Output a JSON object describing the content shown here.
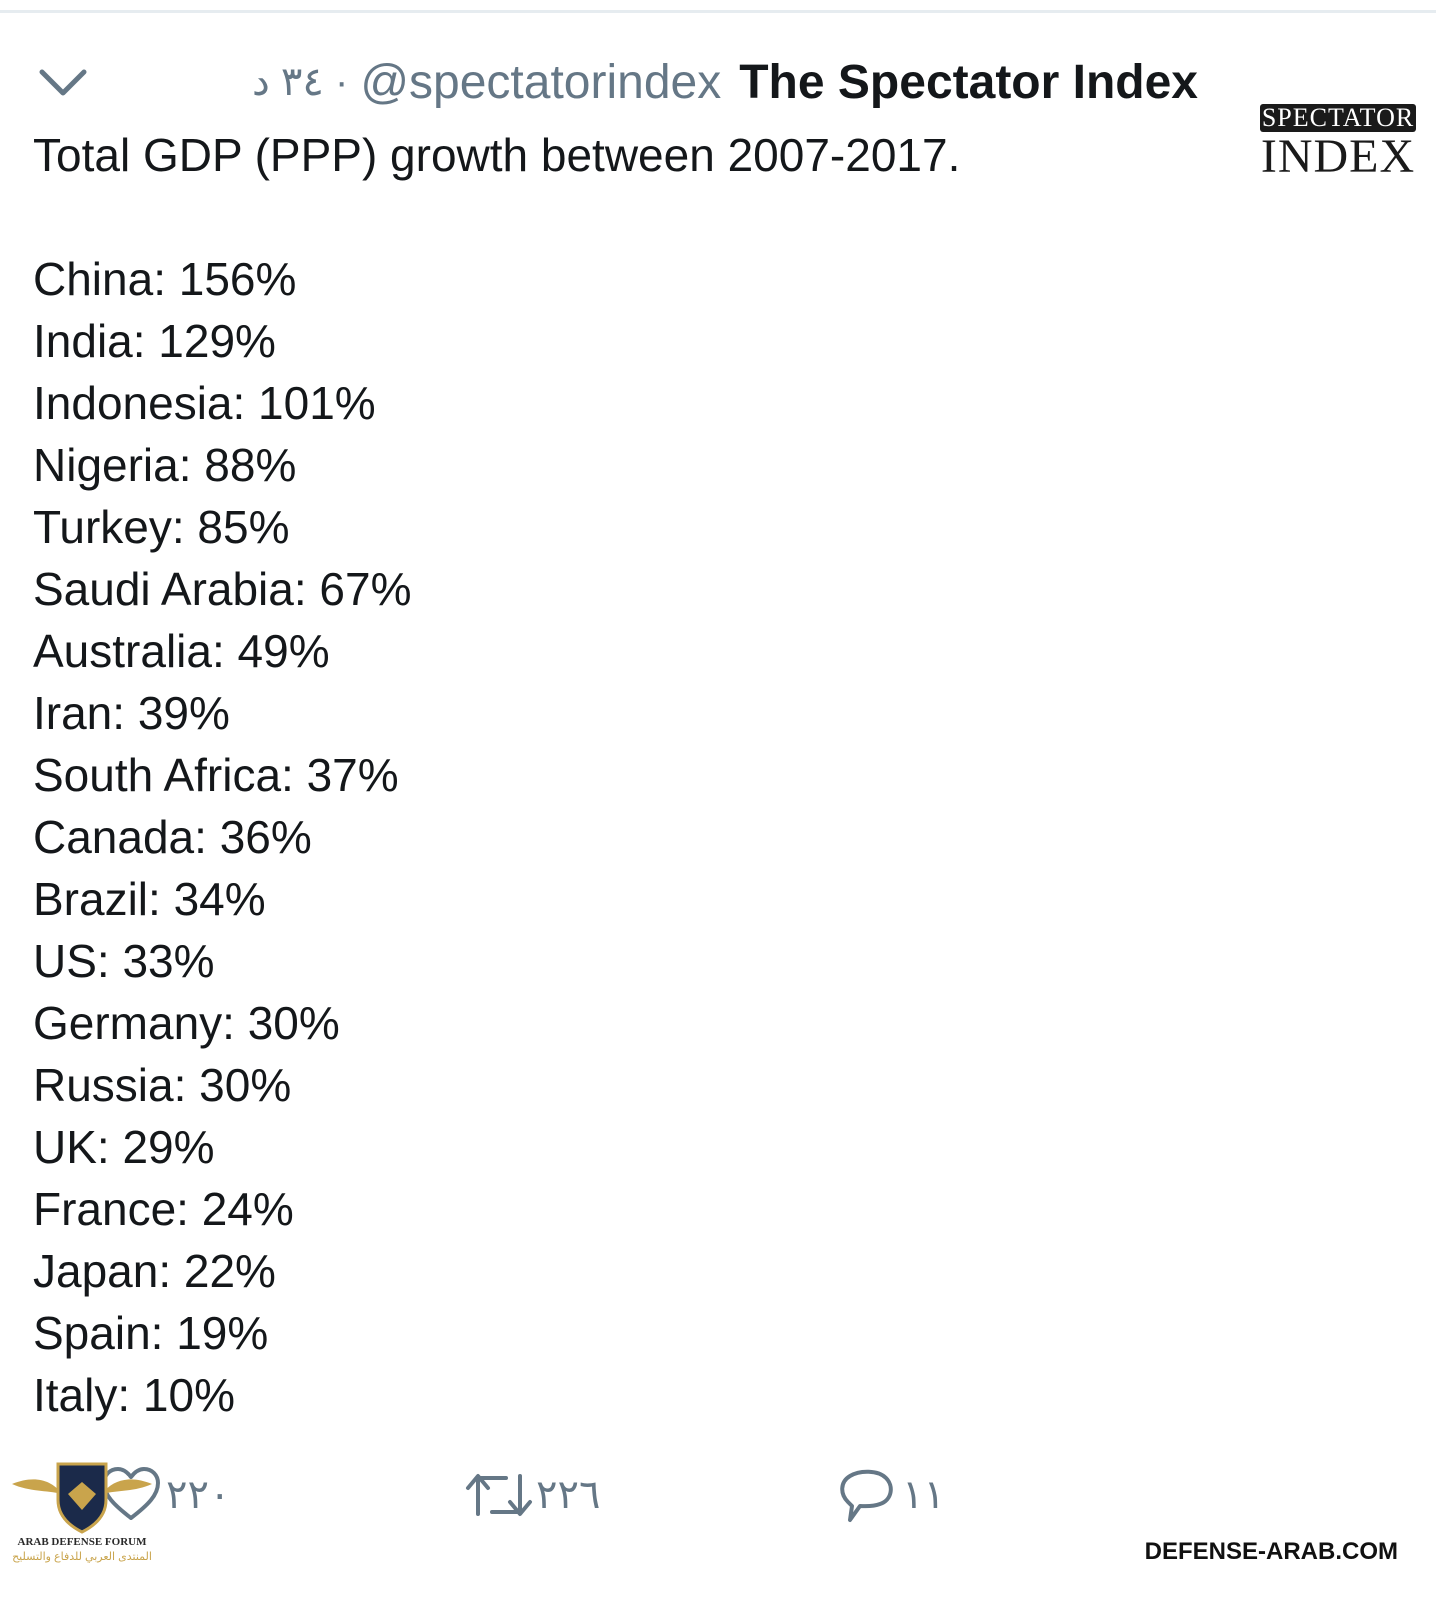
{
  "header": {
    "time": "٣٤ د",
    "separator": "·",
    "handle": "@spectatorindex",
    "display_name": "The Spectator Index"
  },
  "avatar": {
    "top_text": "SPECTATOR",
    "bottom_text": "INDEX"
  },
  "icons": {
    "menu": "chevron-down-icon",
    "like": "heart-icon",
    "retweet": "retweet-icon",
    "reply": "reply-icon"
  },
  "tweet": {
    "text": "Total GDP (PPP) growth between 2007-2017.",
    "stats": [
      {
        "label": "China: 156%"
      },
      {
        "label": "India: 129%"
      },
      {
        "label": "Indonesia: 101%"
      },
      {
        "label": "Nigeria: 88%"
      },
      {
        "label": "Turkey: 85%"
      },
      {
        "label": "Saudi Arabia: 67%"
      },
      {
        "label": "Australia: 49%"
      },
      {
        "label": "Iran: 39%"
      },
      {
        "label": "South Africa: 37%"
      },
      {
        "label": "Canada: 36%"
      },
      {
        "label": "Brazil: 34%"
      },
      {
        "label": "US: 33%"
      },
      {
        "label": "Germany: 30%"
      },
      {
        "label": "Russia: 30%"
      },
      {
        "label": "UK: 29%"
      },
      {
        "label": "France: 24%"
      },
      {
        "label": "Japan: 22%"
      },
      {
        "label": "Spain: 19%"
      },
      {
        "label": "Italy: 10%"
      }
    ]
  },
  "actions": {
    "likes": "٢٢٠",
    "retweets": "٢٢٦",
    "replies": "١١"
  },
  "watermark": {
    "logo_en": "ARAB DEFENSE FORUM",
    "logo_ar": "المنتدى العربي للدفاع والتسليح",
    "site": "DEFENSE-ARAB.COM"
  },
  "colors": {
    "text": "#14171a",
    "secondary": "#657786",
    "divider": "#e6ecf0"
  }
}
